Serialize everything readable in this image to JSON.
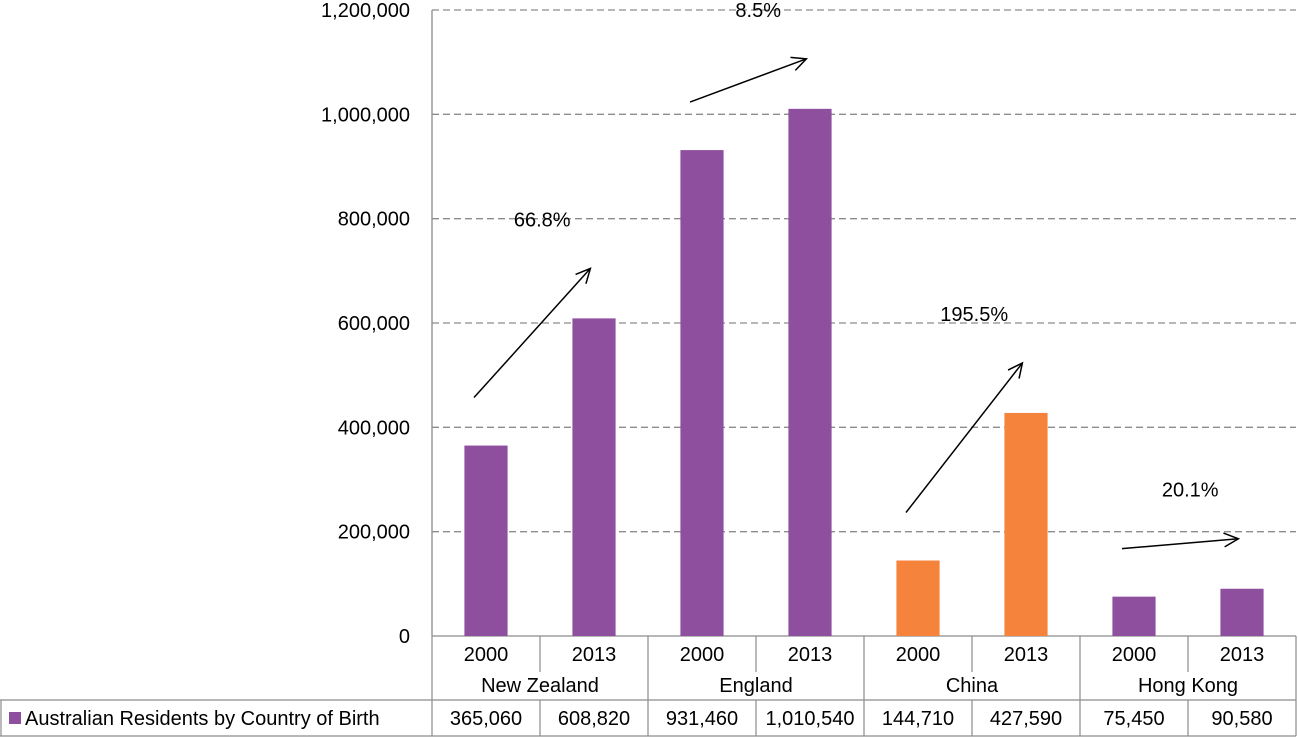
{
  "chart_data": {
    "type": "bar",
    "y_ticks": [
      "0",
      "200,000",
      "400,000",
      "600,000",
      "800,000",
      "1,000,000",
      "1,200,000"
    ],
    "ylim": [
      0,
      1200000
    ],
    "grid": true,
    "groups": [
      {
        "name": "New Zealand",
        "categories": [
          "2000",
          "2013"
        ],
        "values": [
          365060,
          608820
        ],
        "value_labels": [
          "365,060",
          "608,820"
        ],
        "color": "#8E4F9F",
        "change": "66.8%"
      },
      {
        "name": "England",
        "categories": [
          "2000",
          "2013"
        ],
        "values": [
          931460,
          1010540
        ],
        "value_labels": [
          "931,460",
          "1,010,540"
        ],
        "color": "#8E4F9F",
        "change": "8.5%"
      },
      {
        "name": "China",
        "categories": [
          "2000",
          "2013"
        ],
        "values": [
          144710,
          427590
        ],
        "value_labels": [
          "144,710",
          "427,590"
        ],
        "color": "#F5833C",
        "change": "195.5%"
      },
      {
        "name": "Hong Kong",
        "categories": [
          "2000",
          "2013"
        ],
        "values": [
          75450,
          90580
        ],
        "value_labels": [
          "75,450",
          "90,580"
        ],
        "color": "#8E4F9F",
        "change": "20.1%"
      }
    ],
    "series": [
      {
        "name": "Australian Residents by Country of Birth",
        "color": "#8E4F9F"
      }
    ]
  }
}
